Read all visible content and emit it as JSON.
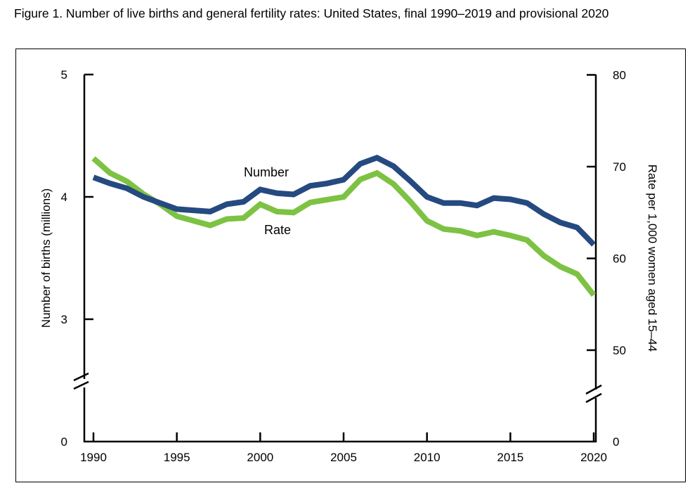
{
  "title": "Figure 1. Number of live births and general fertility rates: United States, final 1990–2019 and provisional 2020",
  "chart_data": {
    "type": "line",
    "title": "Figure 1. Number of live births and general fertility rates: United States, final 1990–2019 and provisional 2020",
    "xlabel": "",
    "ylabel_left": "Number of births (millions)",
    "ylabel_right": "Rate per 1,000 women aged 15–44",
    "x": [
      1990,
      1991,
      1992,
      1993,
      1994,
      1995,
      1996,
      1997,
      1998,
      1999,
      2000,
      2001,
      2002,
      2003,
      2004,
      2005,
      2006,
      2007,
      2008,
      2009,
      2010,
      2011,
      2012,
      2013,
      2014,
      2015,
      2016,
      2017,
      2018,
      2019,
      2020
    ],
    "x_ticks": [
      1990,
      1995,
      2000,
      2005,
      2010,
      2015,
      2020
    ],
    "y_left_ticks": [
      0,
      3,
      4,
      5
    ],
    "y_right_ticks": [
      0,
      50,
      60,
      70,
      80
    ],
    "y_left_range": [
      2.5,
      5
    ],
    "y_right_range": [
      46,
      80
    ],
    "axis_break": true,
    "grid": false,
    "legend": "inline labels",
    "series": [
      {
        "name": "Number",
        "axis": "left",
        "color": "#254a80",
        "values": [
          4.16,
          4.11,
          4.07,
          4.0,
          3.95,
          3.9,
          3.89,
          3.88,
          3.94,
          3.96,
          4.06,
          4.03,
          4.02,
          4.09,
          4.11,
          4.14,
          4.27,
          4.32,
          4.25,
          4.13,
          4.0,
          3.95,
          3.95,
          3.93,
          3.99,
          3.98,
          3.95,
          3.86,
          3.79,
          3.75,
          3.61
        ]
      },
      {
        "name": "Rate",
        "axis": "right",
        "color": "#7dc243",
        "values": [
          70.9,
          69.3,
          68.4,
          67.0,
          65.9,
          64.6,
          64.1,
          63.6,
          64.3,
          64.4,
          65.9,
          65.1,
          65.0,
          66.1,
          66.4,
          66.7,
          68.6,
          69.3,
          68.1,
          66.2,
          64.1,
          63.2,
          63.0,
          62.5,
          62.9,
          62.5,
          62.0,
          60.3,
          59.1,
          58.3,
          56.0
        ]
      }
    ]
  }
}
